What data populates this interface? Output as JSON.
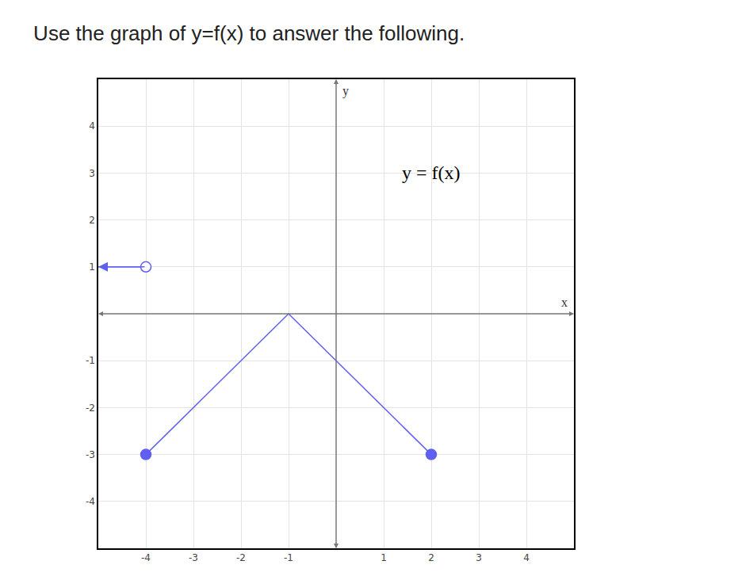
{
  "chart_data": {
    "type": "line",
    "title": "Use the graph of y=f(x) to answer the following.",
    "x_label": "x",
    "y_label": "y",
    "annotations": [
      {
        "text": "y = f(x)",
        "x": 2,
        "y": 3
      }
    ],
    "xlim": [
      -5,
      5
    ],
    "ylim": [
      -5,
      5
    ],
    "xticks": [
      -4,
      -3,
      -2,
      -1,
      1,
      2,
      3,
      4
    ],
    "yticks": [
      -4,
      -3,
      -2,
      -1,
      1,
      2,
      3,
      4
    ],
    "grid": true,
    "series": [
      {
        "type": "line",
        "color": "#5f5ff2",
        "x": [
          -5,
          -4
        ],
        "values": [
          1,
          1
        ],
        "line_style": "arrow"
      },
      {
        "type": "scatter",
        "color": "#5f5ff2",
        "x": [
          -4
        ],
        "values": [
          1
        ],
        "marker": "open"
      },
      {
        "type": "line",
        "color": "#5f5ff2",
        "x": [
          -4,
          -1,
          2
        ],
        "values": [
          -3,
          0,
          -3
        ],
        "line_style": "solid"
      },
      {
        "type": "scatter",
        "color": "#5f5ff2",
        "x": [
          -4,
          2
        ],
        "values": [
          -3,
          -3
        ],
        "marker": "closed"
      }
    ]
  }
}
